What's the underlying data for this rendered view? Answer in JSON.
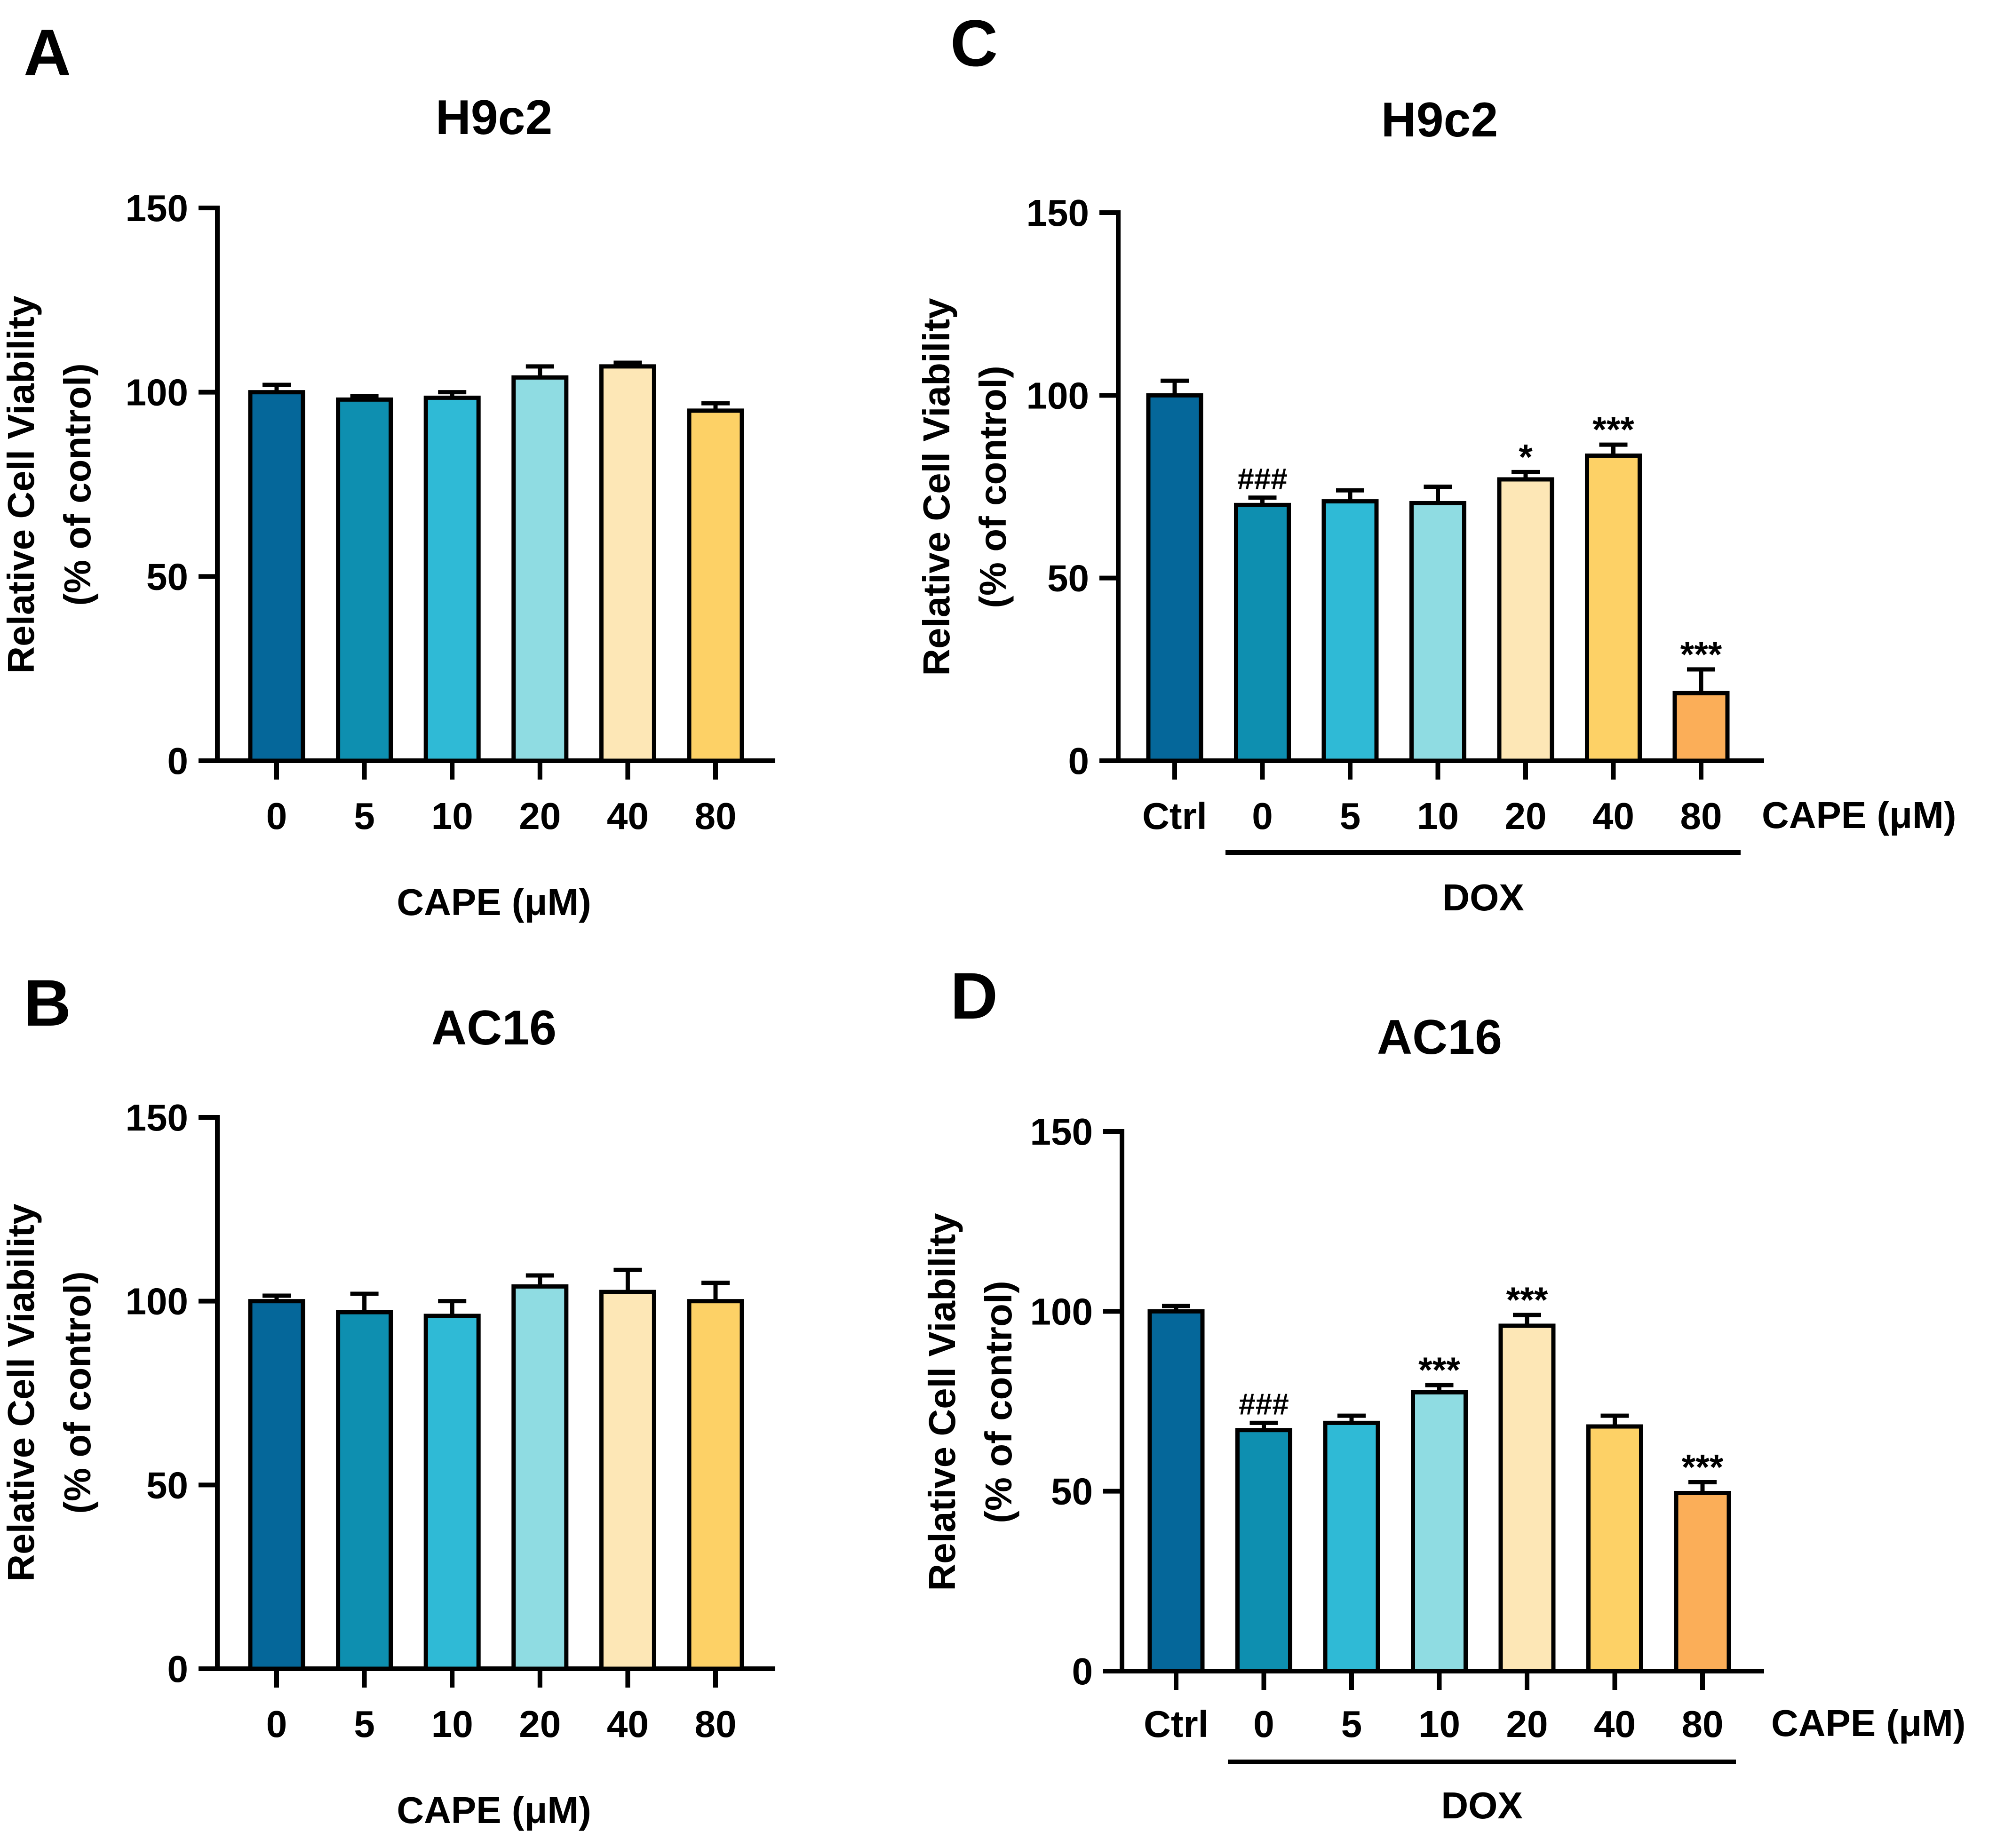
{
  "colors": {
    "ctrl": "#05679A",
    "c0": "#0E8FB0",
    "c5": "#2FBAD6",
    "c10": "#8FDCE2",
    "c20": "#FDE7B6",
    "c40": "#FDD166",
    "c80": "#FBAE58",
    "axis": "#000000"
  },
  "chart_data": [
    {
      "panel": "A",
      "type": "bar",
      "title": "H9c2",
      "ylabel": "Relative Cell Viability",
      "ylabel2": "(% of control)",
      "xlabel": "CAPE (μM)",
      "ylim": [
        0,
        150
      ],
      "yticks": [
        0,
        50,
        100,
        150
      ],
      "categories": [
        "0",
        "5",
        "10",
        "20",
        "40",
        "80"
      ],
      "values": [
        100,
        98,
        98.5,
        104,
        107,
        95
      ],
      "errors": [
        2,
        1,
        1.5,
        3,
        1,
        2
      ],
      "annotations": [
        "",
        "",
        "",
        "",
        "",
        ""
      ],
      "color_keys": [
        "ctrl",
        "c0",
        "c5",
        "c10",
        "c20",
        "c40"
      ]
    },
    {
      "panel": "B",
      "type": "bar",
      "title": "AC16",
      "ylabel": "Relative Cell Viability",
      "ylabel2": "(% of control)",
      "xlabel": "CAPE (μM)",
      "ylim": [
        0,
        150
      ],
      "yticks": [
        0,
        50,
        100,
        150
      ],
      "categories": [
        "0",
        "5",
        "10",
        "20",
        "40",
        "80"
      ],
      "values": [
        100,
        97,
        96,
        104,
        102.5,
        100
      ],
      "errors": [
        1.5,
        5,
        4,
        3,
        6,
        5
      ],
      "annotations": [
        "",
        "",
        "",
        "",
        "",
        ""
      ],
      "color_keys": [
        "ctrl",
        "c0",
        "c5",
        "c10",
        "c20",
        "c40"
      ]
    },
    {
      "panel": "C",
      "type": "bar",
      "title": "H9c2",
      "ylabel": "Relative Cell Viability",
      "ylabel2": "(% of control)",
      "cape_label": "CAPE (μM)",
      "group_label": "DOX",
      "ylim": [
        0,
        150
      ],
      "yticks": [
        0,
        50,
        100,
        150
      ],
      "categories": [
        "Ctrl",
        "0",
        "5",
        "10",
        "20",
        "40",
        "80"
      ],
      "values": [
        100,
        70,
        71,
        70.5,
        77,
        83.5,
        18.5
      ],
      "errors": [
        4,
        2,
        3,
        4.5,
        2,
        3,
        6.5
      ],
      "annotations": [
        "",
        "###",
        "",
        "",
        "*",
        "***",
        "***"
      ],
      "color_keys": [
        "ctrl",
        "c0",
        "c5",
        "c10",
        "c20",
        "c40",
        "c80"
      ]
    },
    {
      "panel": "D",
      "type": "bar",
      "title": "AC16",
      "ylabel": "Relative Cell Viability",
      "ylabel2": "(% of control)",
      "cape_label": "CAPE (μM)",
      "group_label": "DOX",
      "ylim": [
        0,
        150
      ],
      "yticks": [
        0,
        50,
        100,
        150
      ],
      "categories": [
        "Ctrl",
        "0",
        "5",
        "10",
        "20",
        "40",
        "80"
      ],
      "values": [
        100,
        67,
        69,
        77.5,
        96,
        68,
        49.5
      ],
      "errors": [
        1.5,
        2,
        2,
        2,
        3,
        3,
        3
      ],
      "annotations": [
        "",
        "###",
        "",
        "***",
        "***",
        "",
        "***"
      ],
      "color_keys": [
        "ctrl",
        "c0",
        "c5",
        "c10",
        "c20",
        "c40",
        "c80"
      ]
    }
  ]
}
